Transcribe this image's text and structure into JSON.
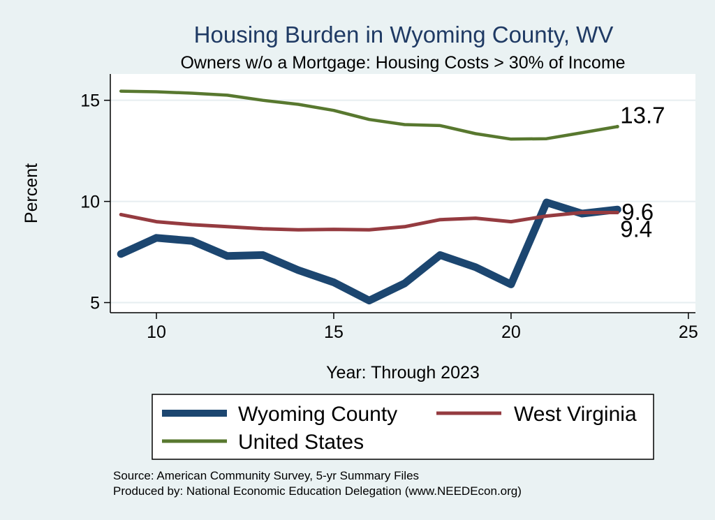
{
  "chart_data": {
    "type": "line",
    "title": "Housing Burden in Wyoming County, WV",
    "subtitle": "Owners w/o a Mortgage: Housing Costs > 30% of Income",
    "xlabel": "Year: Through 2023",
    "ylabel": "Percent",
    "xlim": [
      8.7,
      25.2
    ],
    "ylim": [
      4.5,
      16.3
    ],
    "xticks": [
      10,
      15,
      20,
      25
    ],
    "yticks": [
      5,
      10,
      15
    ],
    "grid": "horizontal",
    "legend_position": "bottom",
    "x": [
      9,
      10,
      11,
      12,
      13,
      14,
      15,
      16,
      17,
      18,
      19,
      20,
      21,
      22,
      23
    ],
    "series": [
      {
        "name": "Wyoming County",
        "color": "#1c4670",
        "values": [
          7.4,
          8.2,
          8.05,
          7.3,
          7.35,
          6.6,
          6.0,
          5.1,
          5.95,
          7.35,
          6.75,
          5.9,
          9.95,
          9.4,
          9.6
        ],
        "end_label": "9.6"
      },
      {
        "name": "West Virginia",
        "color": "#953b40",
        "values": [
          9.35,
          9.0,
          8.85,
          8.75,
          8.65,
          8.6,
          8.62,
          8.6,
          8.75,
          9.1,
          9.17,
          9.0,
          9.28,
          9.45,
          9.45
        ],
        "end_label": "9.4"
      },
      {
        "name": "United States",
        "color": "#58782f",
        "values": [
          15.45,
          15.42,
          15.35,
          15.25,
          15.0,
          14.8,
          14.5,
          14.05,
          13.8,
          13.75,
          13.35,
          13.08,
          13.1,
          13.4,
          13.7
        ],
        "end_label": "13.7"
      }
    ]
  },
  "footer": {
    "source": "Source: American Community Survey, 5-yr Summary Files",
    "produced": "Produced by: National Economic Education Delegation (www.NEEDEcon.org)"
  }
}
